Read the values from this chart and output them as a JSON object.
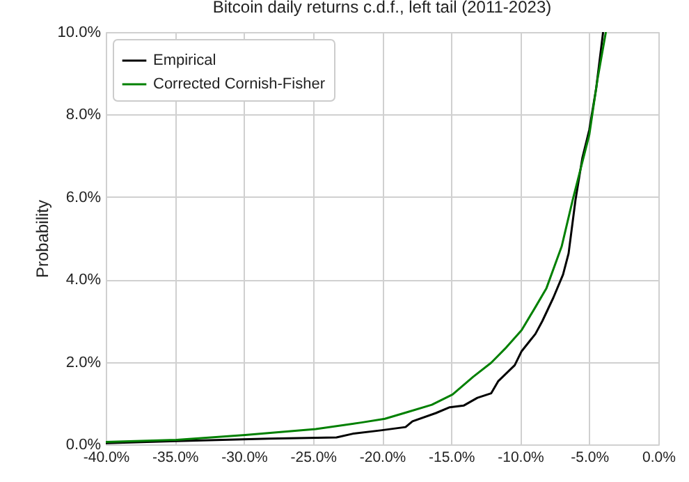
{
  "chart_data": {
    "type": "line",
    "title": "Bitcoin daily returns c.d.f., left tail (2011-2023)",
    "ylabel": "Probability",
    "xlim": [
      -40,
      0
    ],
    "ylim": [
      0,
      10
    ],
    "xticks": [
      {
        "value": -40,
        "label": "-40.0%"
      },
      {
        "value": -35,
        "label": "-35.0%"
      },
      {
        "value": -30,
        "label": "-30.0%"
      },
      {
        "value": -25,
        "label": "-25.0%"
      },
      {
        "value": -20,
        "label": "-20.0%"
      },
      {
        "value": -15,
        "label": "-15.0%"
      },
      {
        "value": -10,
        "label": "-10.0%"
      },
      {
        "value": -5,
        "label": "-5.0%"
      },
      {
        "value": 0,
        "label": "0.0%"
      }
    ],
    "yticks": [
      {
        "value": 0,
        "label": "0.0%"
      },
      {
        "value": 2,
        "label": "2.0%"
      },
      {
        "value": 4,
        "label": "4.0%"
      },
      {
        "value": 6,
        "label": "6.0%"
      },
      {
        "value": 8,
        "label": "8.0%"
      },
      {
        "value": 10,
        "label": "10.0%"
      }
    ],
    "grid": true,
    "legend": "top left",
    "line_style": "solid",
    "marker": "none",
    "series": [
      {
        "name": "Empirical",
        "color": "#000000",
        "x": [
          -40,
          -34.9,
          -28.2,
          -23.3,
          -22.1,
          -20.1,
          -18.3,
          -17.8,
          -16.1,
          -15.1,
          -14.1,
          -13.1,
          -12.1,
          -11.6,
          -10.4,
          -9.9,
          -8.9,
          -8.4,
          -7.6,
          -6.9,
          -6.5,
          -6.0,
          -5.5,
          -5.0,
          -4.5,
          -4.0
        ],
        "values": [
          0.03,
          0.08,
          0.14,
          0.17,
          0.26,
          0.34,
          0.42,
          0.56,
          0.76,
          0.9,
          0.94,
          1.13,
          1.24,
          1.53,
          1.92,
          2.26,
          2.68,
          2.99,
          3.56,
          4.12,
          4.63,
          5.93,
          6.95,
          7.63,
          8.64,
          10.0
        ]
      },
      {
        "name": "Corrected Cornish-Fisher",
        "color": "#008000",
        "x": [
          -40,
          -34.9,
          -29.9,
          -24.8,
          -21.5,
          -19.8,
          -18.1,
          -16.4,
          -14.9,
          -13.4,
          -12.1,
          -11.1,
          -9.9,
          -8.9,
          -8.1,
          -7.0,
          -6.2,
          -5.0,
          -4.4,
          -3.8
        ],
        "values": [
          0.06,
          0.11,
          0.23,
          0.37,
          0.53,
          0.62,
          0.79,
          0.96,
          1.21,
          1.64,
          1.98,
          2.32,
          2.77,
          3.33,
          3.79,
          4.8,
          5.93,
          7.51,
          8.87,
          10.0
        ]
      }
    ]
  }
}
